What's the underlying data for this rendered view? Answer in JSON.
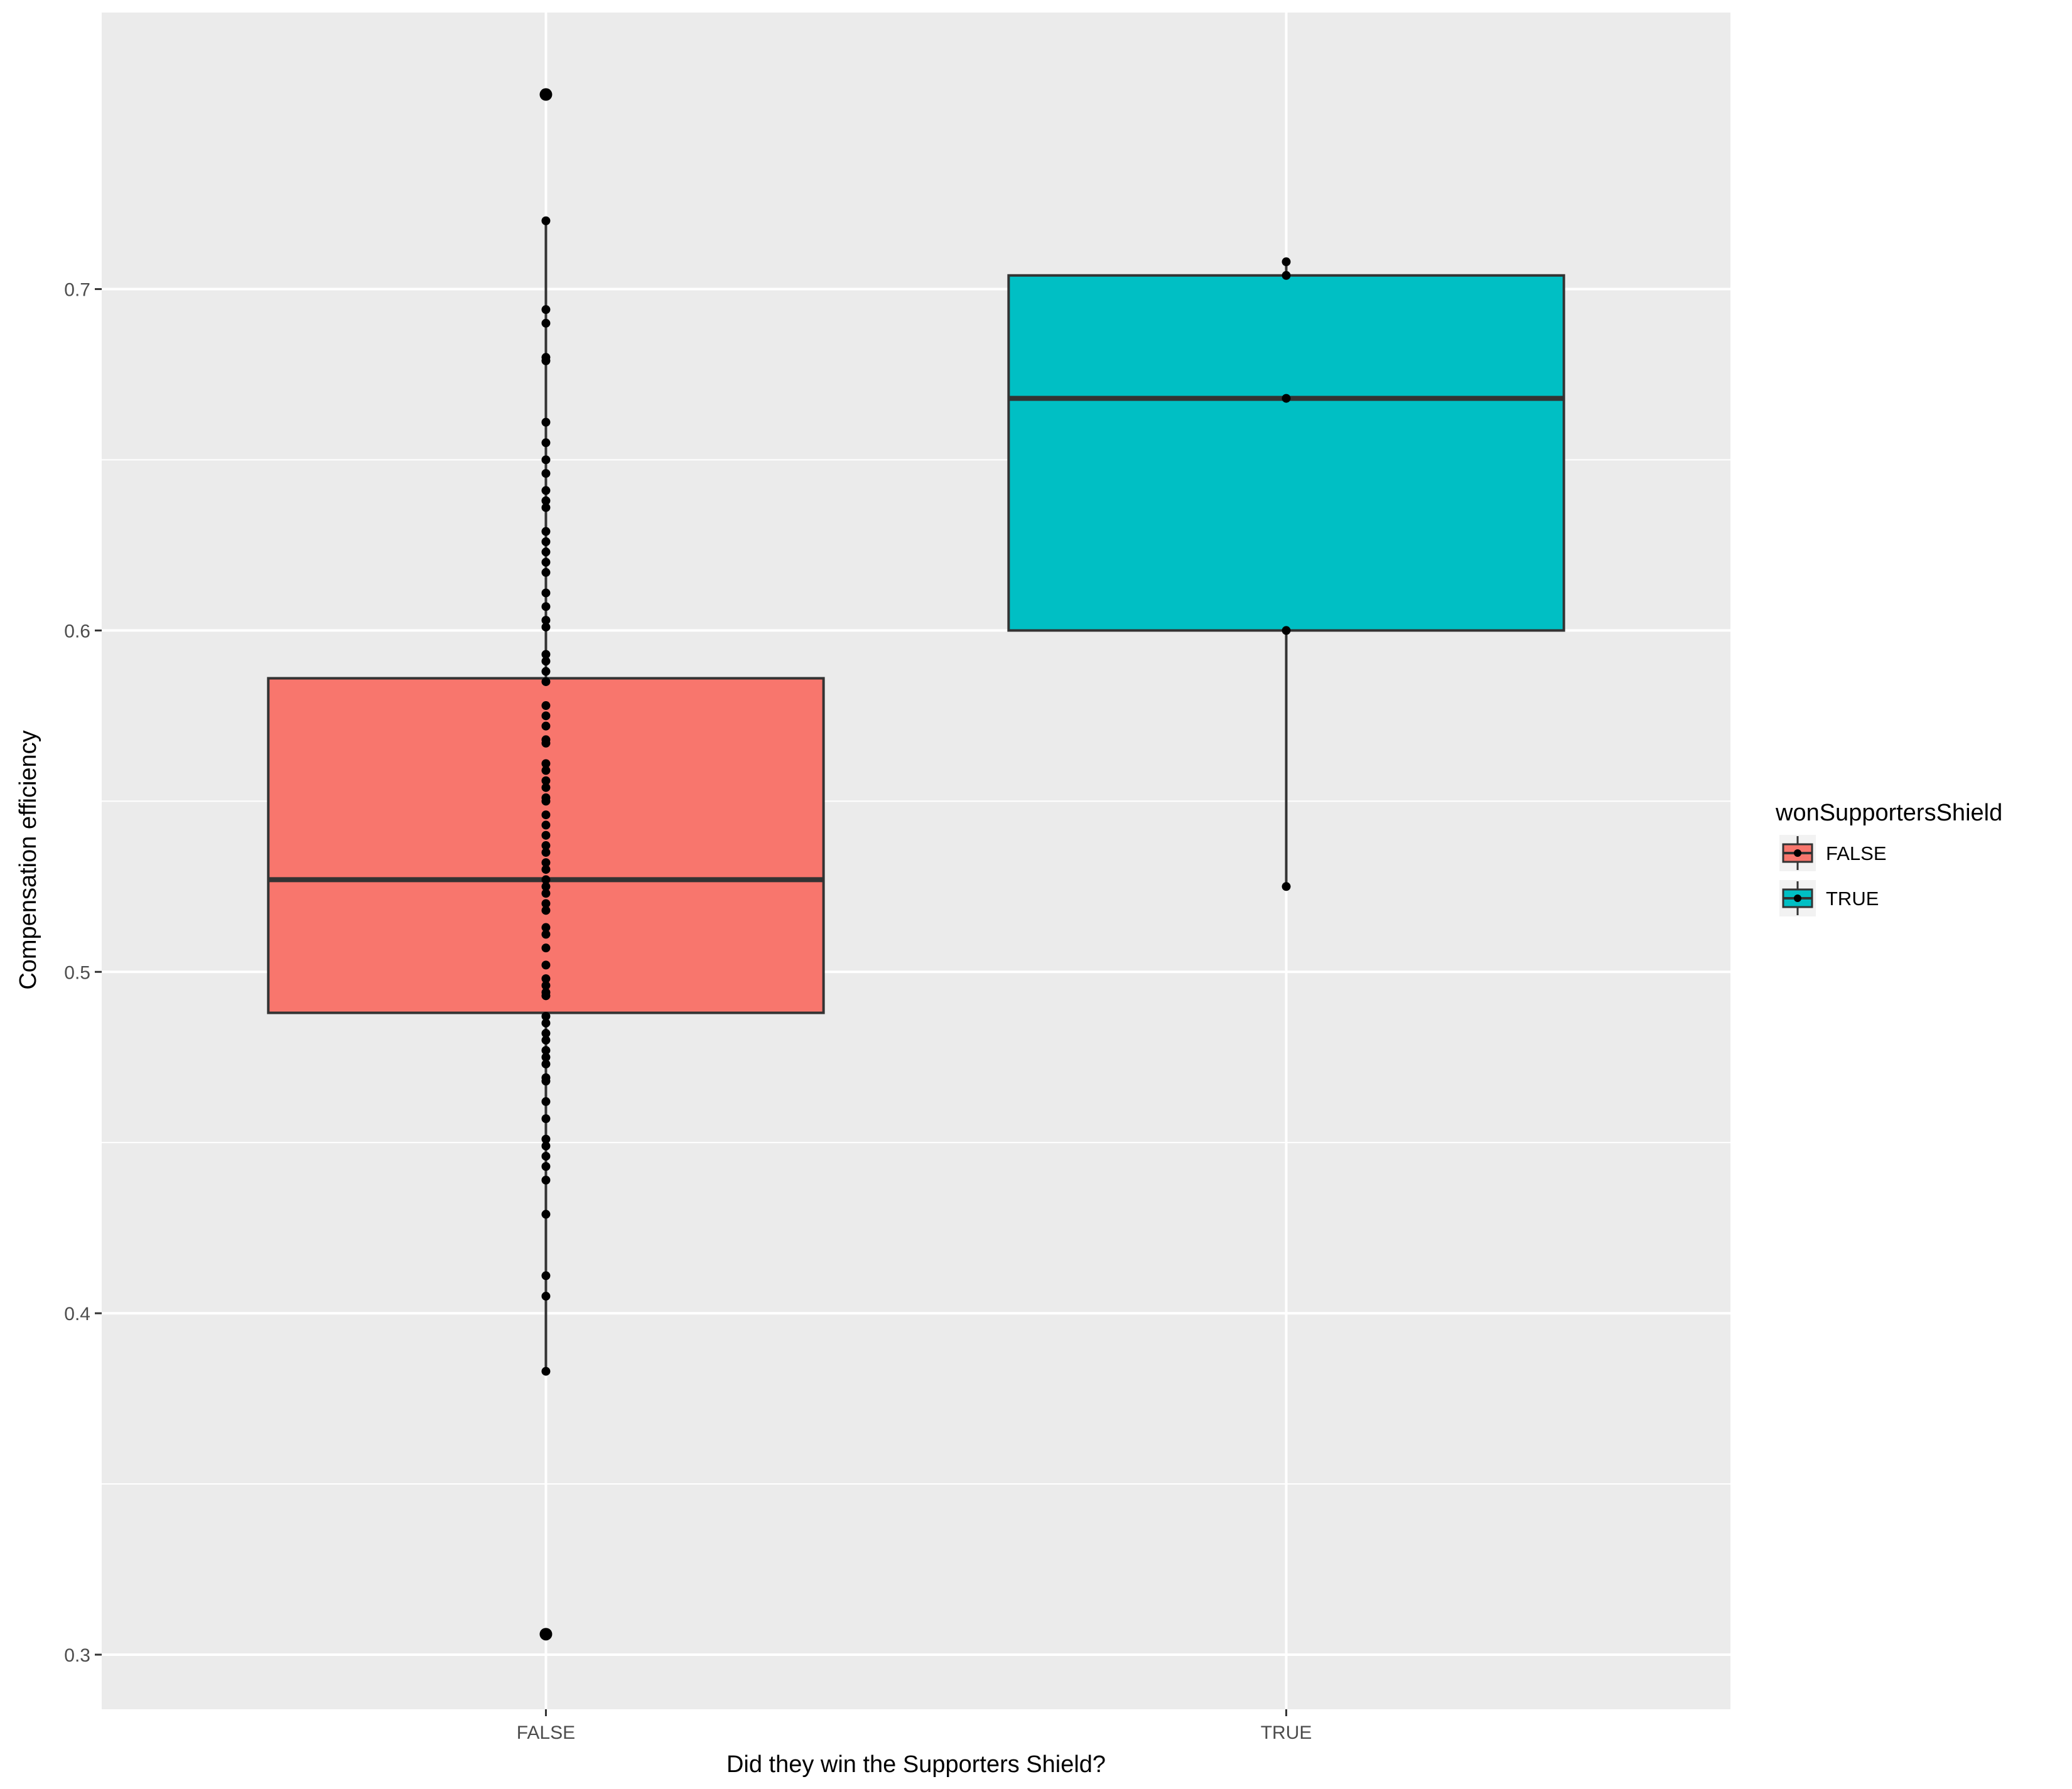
{
  "chart_data": {
    "type": "boxplot",
    "xlabel": "Did they win the Supporters Shield?",
    "ylabel": "Compensation efficiency",
    "categories": [
      "FALSE",
      "TRUE"
    ],
    "ylim": [
      0.284,
      0.781
    ],
    "y_ticks": [
      0.3,
      0.4,
      0.5,
      0.6,
      0.7
    ],
    "y_tick_labels": [
      "0.3",
      "0.4",
      "0.5",
      "0.6",
      "0.7"
    ],
    "grid": true,
    "legend": {
      "title": "wonSupportersShield",
      "position": "right",
      "entries": [
        {
          "label": "FALSE",
          "color": "#F8766D"
        },
        {
          "label": "TRUE",
          "color": "#00BFC4"
        }
      ]
    },
    "boxes": [
      {
        "category": "FALSE",
        "color": "#F8766D",
        "whisker_low": 0.383,
        "q1": 0.488,
        "median": 0.527,
        "q3": 0.586,
        "whisker_high": 0.72,
        "outliers": [
          0.306,
          0.757
        ],
        "points": [
          0.757,
          0.72,
          0.694,
          0.69,
          0.68,
          0.679,
          0.661,
          0.655,
          0.65,
          0.646,
          0.641,
          0.638,
          0.636,
          0.629,
          0.626,
          0.623,
          0.62,
          0.617,
          0.611,
          0.607,
          0.603,
          0.601,
          0.593,
          0.591,
          0.588,
          0.585,
          0.578,
          0.575,
          0.572,
          0.568,
          0.567,
          0.561,
          0.559,
          0.556,
          0.554,
          0.551,
          0.55,
          0.546,
          0.543,
          0.54,
          0.537,
          0.535,
          0.532,
          0.53,
          0.527,
          0.525,
          0.523,
          0.52,
          0.518,
          0.513,
          0.511,
          0.507,
          0.502,
          0.498,
          0.496,
          0.494,
          0.493,
          0.487,
          0.485,
          0.482,
          0.48,
          0.477,
          0.475,
          0.473,
          0.469,
          0.468,
          0.462,
          0.457,
          0.451,
          0.449,
          0.446,
          0.443,
          0.439,
          0.429,
          0.411,
          0.405,
          0.383,
          0.306
        ]
      },
      {
        "category": "TRUE",
        "color": "#00BFC4",
        "whisker_low": 0.525,
        "q1": 0.6,
        "median": 0.668,
        "q3": 0.704,
        "whisker_high": 0.708,
        "outliers": [],
        "points": [
          0.708,
          0.704,
          0.668,
          0.6,
          0.525
        ]
      }
    ]
  }
}
